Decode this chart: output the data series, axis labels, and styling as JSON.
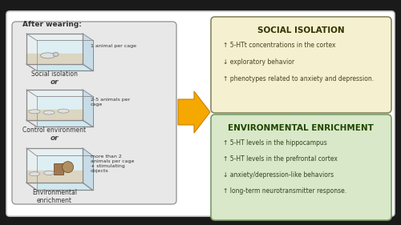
{
  "background_color": "#1a1a1a",
  "figure_bg": "#ffffff",
  "title_after_wearing": "After wearing:",
  "left_panel_bg": "#e8e8e8",
  "left_panel_edge": "#999999",
  "cage1_label": "Social isolation",
  "cage1_note": "1 animal per cage",
  "cage2_label": "Control environment",
  "cage2_note": "2-5 animals per\ncage",
  "cage3_label": "Environmental\nenrichment",
  "cage3_note": "more than 2\nanimals per cage\n+ stimulating\nobjects",
  "or_text": "or",
  "arrow_color": "#f5a800",
  "arrow_edge": "#c88000",
  "social_box_bg": "#f5f0d0",
  "social_box_edge": "#888860",
  "social_title": "SOCIAL ISOLATION",
  "social_lines": [
    "↑ 5-HTt concentrations in the cortex",
    "↓ exploratory behavior",
    "↑ phenotypes related to anxiety and depression."
  ],
  "enrich_box_bg": "#d8e8c8",
  "enrich_box_edge": "#7a9a6a",
  "enrich_title": "ENVIRONMENTAL ENRICHMENT",
  "enrich_lines": [
    "↑ 5-HT levels in the hippocampus",
    "↑ 5-HT levels in the prefrontal cortex",
    "↓ anxiety/depression-like behaviors",
    "↑ long-term neurotransmitter response."
  ],
  "cage_bg": "#e8f4f8",
  "cage_edge": "#888888",
  "cage_floor": "#c8a870",
  "rat_color": "#e0e0e0",
  "rat_edge": "#888888"
}
